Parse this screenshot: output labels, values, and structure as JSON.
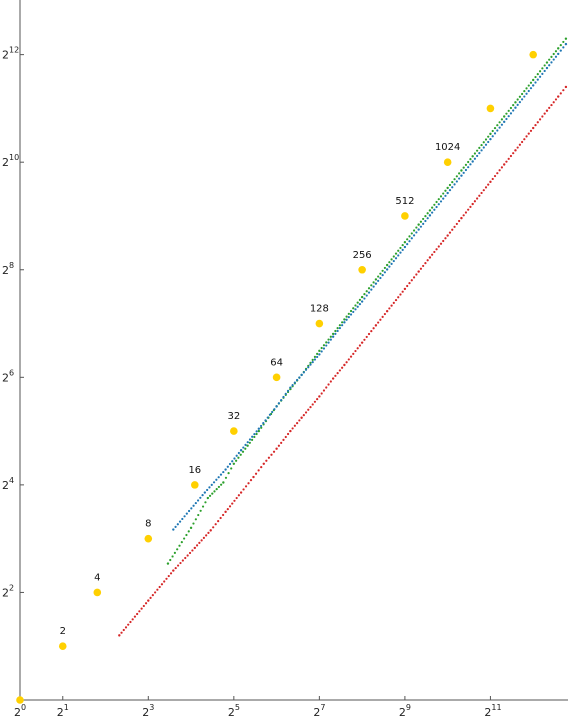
{
  "chart_data": {
    "type": "scatter",
    "title": "",
    "xlabel": "",
    "ylabel": "",
    "log_base": 2,
    "x_scale": "log2",
    "y_scale": "log2",
    "xlim": [
      1,
      7200
    ],
    "ylim": [
      1,
      6400
    ],
    "grid": false,
    "legend": "none",
    "x_ticks": [
      {
        "base": "2",
        "exp": "0",
        "value": 1
      },
      {
        "base": "2",
        "exp": "1",
        "value": 2
      },
      {
        "base": "2",
        "exp": "3",
        "value": 8
      },
      {
        "base": "2",
        "exp": "5",
        "value": 32
      },
      {
        "base": "2",
        "exp": "7",
        "value": 128
      },
      {
        "base": "2",
        "exp": "9",
        "value": 512
      },
      {
        "base": "2",
        "exp": "11",
        "value": 2048
      }
    ],
    "y_ticks": [
      {
        "base": "2",
        "exp": "2",
        "value": 4
      },
      {
        "base": "2",
        "exp": "4",
        "value": 16
      },
      {
        "base": "2",
        "exp": "6",
        "value": 64
      },
      {
        "base": "2",
        "exp": "8",
        "value": 256
      },
      {
        "base": "2",
        "exp": "10",
        "value": 1024
      },
      {
        "base": "2",
        "exp": "12",
        "value": 4096
      }
    ],
    "series": [
      {
        "color": "#2ca02c",
        "marker": "dot",
        "points": [
          [
            11,
            5.8
          ],
          [
            16,
            9.2
          ],
          [
            21,
            13.5
          ],
          [
            27,
            16.5
          ],
          [
            32,
            21
          ],
          [
            40,
            26.5
          ],
          [
            48,
            32
          ],
          [
            56,
            38
          ],
          [
            64,
            44
          ],
          [
            80,
            55
          ],
          [
            96,
            66
          ],
          [
            128,
            90
          ],
          [
            160,
            112
          ],
          [
            192,
            135
          ],
          [
            256,
            180
          ],
          [
            320,
            226
          ],
          [
            384,
            272
          ],
          [
            512,
            365
          ],
          [
            640,
            458
          ],
          [
            768,
            550
          ],
          [
            1024,
            735
          ],
          [
            1280,
            920
          ],
          [
            1536,
            1105
          ],
          [
            2048,
            1475
          ],
          [
            2560,
            1845
          ],
          [
            3072,
            2215
          ],
          [
            4096,
            2955
          ],
          [
            5120,
            3700
          ],
          [
            6144,
            4440
          ],
          [
            6960,
            5030
          ]
        ]
      },
      {
        "color": "#1f77b4",
        "marker": "dot",
        "points": [
          [
            12,
            9
          ],
          [
            20,
            14.5
          ],
          [
            28,
            19.5
          ],
          [
            36,
            25
          ],
          [
            48,
            33
          ],
          [
            64,
            44
          ],
          [
            80,
            56
          ],
          [
            96,
            66
          ],
          [
            128,
            86
          ],
          [
            160,
            108
          ],
          [
            192,
            130
          ],
          [
            256,
            170
          ],
          [
            320,
            214
          ],
          [
            384,
            257
          ],
          [
            512,
            343
          ],
          [
            640,
            430
          ],
          [
            768,
            516
          ],
          [
            1024,
            688
          ],
          [
            1280,
            861
          ],
          [
            1536,
            1033
          ],
          [
            2048,
            1378
          ],
          [
            2560,
            1723
          ],
          [
            3072,
            2067
          ],
          [
            4096,
            2755
          ],
          [
            5120,
            3445
          ],
          [
            6144,
            4135
          ],
          [
            6960,
            4690
          ]
        ]
      },
      {
        "color": "#d62728",
        "marker": "dot",
        "points": [
          [
            5,
            2.3
          ],
          [
            8,
            3.6
          ],
          [
            12,
            5.3
          ],
          [
            17,
            7.1
          ],
          [
            22,
            8.9
          ],
          [
            28,
            11.3
          ],
          [
            36,
            14.5
          ],
          [
            44,
            17.7
          ],
          [
            52,
            21
          ],
          [
            64,
            25.5
          ],
          [
            80,
            32
          ],
          [
            96,
            38
          ],
          [
            128,
            50
          ],
          [
            160,
            63
          ],
          [
            192,
            75
          ],
          [
            256,
            100
          ],
          [
            320,
            125
          ],
          [
            384,
            150
          ],
          [
            512,
            200
          ],
          [
            640,
            250
          ],
          [
            768,
            300
          ],
          [
            1024,
            398
          ],
          [
            1280,
            498
          ],
          [
            1536,
            597
          ],
          [
            2048,
            795
          ],
          [
            2560,
            994
          ],
          [
            3072,
            1193
          ],
          [
            4096,
            1590
          ],
          [
            5120,
            1988
          ],
          [
            6144,
            2385
          ],
          [
            6960,
            2700
          ]
        ]
      }
    ],
    "highlighted": {
      "color": "#ffd000",
      "marker": "large-dot",
      "points": [
        {
          "x": 1,
          "y": 1,
          "label": ""
        },
        {
          "x": 2,
          "y": 2,
          "label": "2"
        },
        {
          "x": 3.5,
          "y": 4,
          "label": "4"
        },
        {
          "x": 8,
          "y": 8,
          "label": "8"
        },
        {
          "x": 17,
          "y": 16,
          "label": "16"
        },
        {
          "x": 32,
          "y": 32,
          "label": "32"
        },
        {
          "x": 64,
          "y": 64,
          "label": "64"
        },
        {
          "x": 128,
          "y": 128,
          "label": "128"
        },
        {
          "x": 256,
          "y": 256,
          "label": "256"
        },
        {
          "x": 512,
          "y": 512,
          "label": "512"
        },
        {
          "x": 1024,
          "y": 1024,
          "label": "1024"
        },
        {
          "x": 2048,
          "y": 2048,
          "label": ""
        },
        {
          "x": 4096,
          "y": 4096,
          "label": ""
        }
      ]
    }
  }
}
